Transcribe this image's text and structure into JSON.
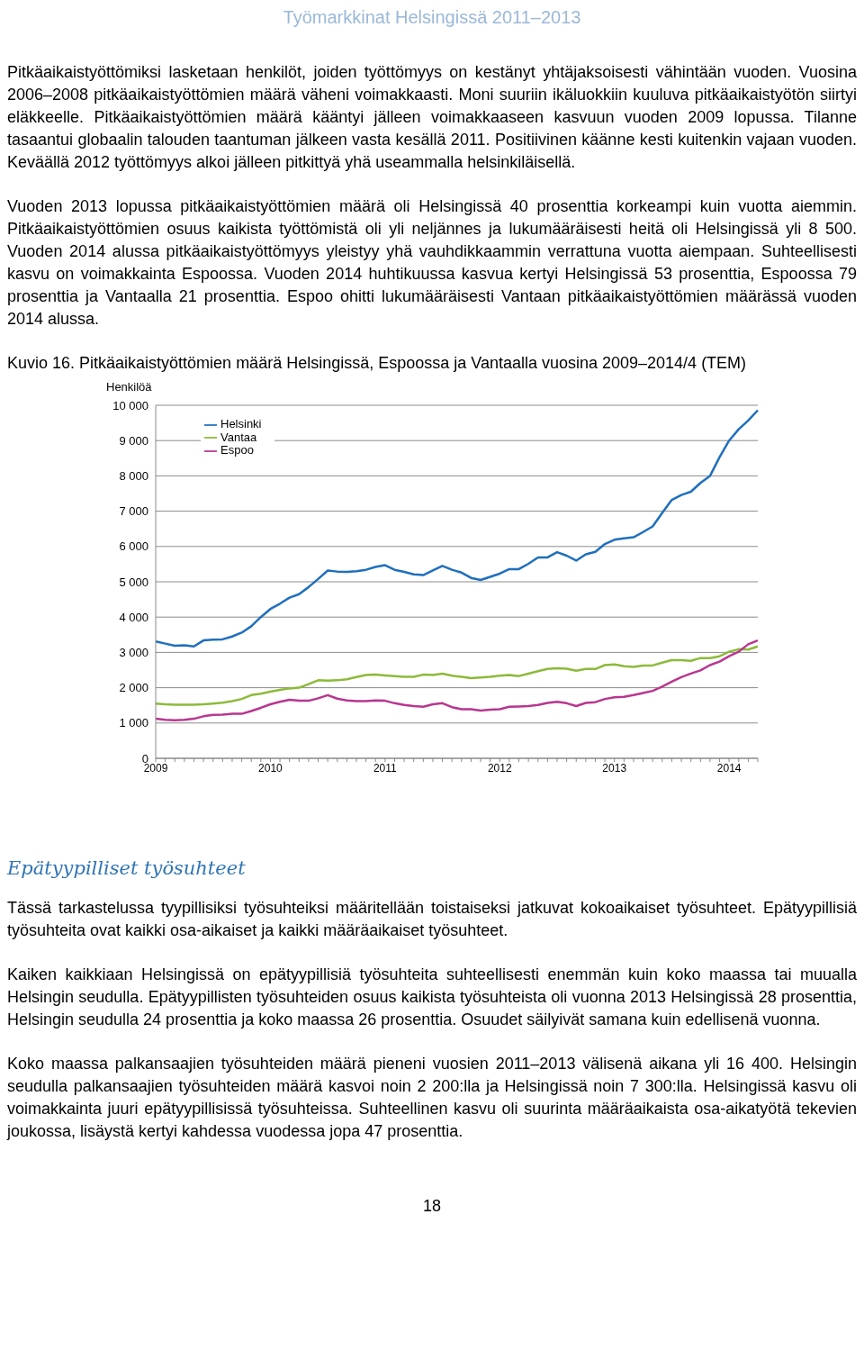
{
  "chart_data": {
    "type": "line",
    "title": "Kuvio 16. Pitkäaikaistyöttömien määrä Helsingissä, Espoossa ja Vantaalla vuosina 2009–2014/4 (TEM)",
    "ylabel": "Henkilöä",
    "annotations": [
      "Työmarkkinat Helsingissä 2011–2013",
      "Pitkäaikaistyöttömiksi lasketaan henkilöt, joiden työttömyys on kestänyt yhtäjaksoisesti vähintään vuoden. Vuosina 2006–2008 pitkäaikaistyöttömien määrä väheni voimakkaasti. Moni suuriin ikäluokkiin kuuluva pitkäaikaistyötön siirtyi eläkkeelle. Pitkäaikaistyöttömien määrä kääntyi jälleen voimakkaaseen kasvuun vuoden 2009 lopussa. Tilanne tasaantui globaalin talouden taantuman jälkeen vasta kesällä 2011. Positiivinen käänne kesti kuitenkin vajaan vuoden. Keväällä 2012 työttömyys alkoi jälleen pitkittyä yhä useammalla helsinkiläisellä.",
      "Vuoden 2013 lopussa pitkäaikaistyöttömien määrä oli Helsingissä 40 prosenttia korkeampi kuin vuotta aiemmin. Pitkäaikaistyöttömien osuus kaikista työttömistä oli yli neljännes ja lukumääräisesti heitä oli Helsingissä yli 8 500. Vuoden 2014 alussa pitkäaikaistyöttömyys yleistyy yhä vauhdikkaammin verrattuna vuotta aiempaan. Suhteellisesti kasvu on voimakkainta Espoossa. Vuoden 2014 huhtikuussa kasvua kertyi Helsingissä 53 prosenttia, Espoossa 79 prosenttia ja Vantaalla 21 prosenttia. Espoo ohitti lukumääräisesti Vantaan pitkäaikaistyöttömien määrässä vuoden 2014 alussa.",
      "Epätyypilliset työsuhteet",
      "Tässä tarkastelussa tyypillisiksi työsuhteiksi määritellään toistaiseksi jatkuvat kokoaikaiset työsuhteet. Epätyypillisiä työsuhteita ovat kaikki osa-aikaiset ja kaikki määräaikaiset työsuhteet.",
      "Kaiken kaikkiaan Helsingissä on epätyypillisiä työsuhteita suhteellisesti enemmän kuin koko maassa tai muualla Helsingin seudulla. Epätyypillisten työsuhteiden osuus kaikista työsuhteista oli vuonna 2013 Helsingissä 28 prosenttia, Helsingin seudulla 24 prosenttia ja koko maassa 26 prosenttia. Osuudet säilyivät samana kuin edellisenä vuonna.",
      "Koko maassa palkansaajien työsuhteiden määrä pieneni vuosien 2011–2013 välisenä aikana yli 16 400. Helsingin seudulla palkansaajien työsuhteiden määrä kasvoi noin 2 200:lla ja Helsingissä noin 7 300:lla. Helsingissä kasvu oli voimakkainta juuri epätyypillisissä työsuhteissa. Suhteellinen kasvu oli suurinta määräaikaista osa-aikatyötä tekevien joukossa, lisäystä kertyi kahdessa vuodessa jopa 47 prosenttia.",
      "18"
    ],
    "categories": [
      "2009",
      null,
      null,
      null,
      null,
      null,
      null,
      null,
      null,
      null,
      null,
      null,
      "2010",
      null,
      null,
      null,
      null,
      null,
      null,
      null,
      null,
      null,
      null,
      null,
      "2011",
      null,
      null,
      null,
      null,
      null,
      null,
      null,
      null,
      null,
      null,
      null,
      "2012",
      null,
      null,
      null,
      null,
      null,
      null,
      null,
      null,
      null,
      null,
      null,
      "2013",
      null,
      null,
      null,
      null,
      null,
      null,
      null,
      null,
      null,
      null,
      null,
      "2014",
      null,
      null,
      null
    ],
    "series": [
      {
        "name": "Helsinki",
        "color": "#1f6fbd",
        "values": [
          3310,
          3250,
          3190,
          3200,
          3170,
          3340,
          3360,
          3370,
          3450,
          3560,
          3740,
          4000,
          4230,
          4380,
          4550,
          4650,
          4850,
          5080,
          5320,
          5290,
          5280,
          5300,
          5340,
          5420,
          5470,
          5340,
          5280,
          5210,
          5190,
          5320,
          5450,
          5340,
          5260,
          5110,
          5050,
          5140,
          5230,
          5360,
          5360,
          5510,
          5690,
          5690,
          5840,
          5740,
          5600,
          5780,
          5850,
          6070,
          6190,
          6230,
          6260,
          6410,
          6570,
          6950,
          7320,
          7460,
          7550,
          7800,
          8000,
          8530,
          9000,
          9320,
          9570,
          9860
        ]
      },
      {
        "name": "Vantaa",
        "color": "#8cba3a",
        "values": [
          1550,
          1530,
          1520,
          1520,
          1520,
          1530,
          1550,
          1575,
          1620,
          1680,
          1790,
          1830,
          1890,
          1940,
          1980,
          2000,
          2100,
          2210,
          2200,
          2210,
          2240,
          2300,
          2360,
          2370,
          2350,
          2330,
          2310,
          2310,
          2370,
          2360,
          2400,
          2340,
          2310,
          2270,
          2290,
          2310,
          2340,
          2360,
          2330,
          2400,
          2470,
          2530,
          2550,
          2540,
          2480,
          2530,
          2530,
          2640,
          2660,
          2610,
          2590,
          2630,
          2630,
          2710,
          2780,
          2780,
          2760,
          2840,
          2840,
          2890,
          3020,
          3090,
          3080,
          3170
        ]
      },
      {
        "name": "Espoo",
        "color": "#b8368f",
        "values": [
          1120,
          1090,
          1080,
          1090,
          1120,
          1190,
          1230,
          1240,
          1260,
          1260,
          1340,
          1430,
          1530,
          1600,
          1660,
          1630,
          1630,
          1700,
          1790,
          1690,
          1640,
          1620,
          1620,
          1640,
          1630,
          1560,
          1510,
          1480,
          1460,
          1530,
          1560,
          1450,
          1390,
          1390,
          1350,
          1380,
          1390,
          1460,
          1470,
          1480,
          1510,
          1570,
          1600,
          1560,
          1480,
          1570,
          1590,
          1680,
          1730,
          1740,
          1790,
          1850,
          1910,
          2030,
          2170,
          2300,
          2400,
          2490,
          2640,
          2740,
          2890,
          3020,
          3230,
          3340
        ]
      }
    ],
    "ylim": [
      0,
      10000
    ],
    "yticks": [
      0,
      {
        "value": 1000,
        "label": "1 000"
      },
      {
        "value": 2000,
        "label": "2 000"
      },
      {
        "value": 3000,
        "label": "3 000"
      },
      {
        "value": 4000,
        "label": "4 000"
      },
      {
        "value": 5000,
        "label": "5 000"
      },
      {
        "value": 6000,
        "label": "6 000"
      },
      {
        "value": 7000,
        "label": "7 000"
      },
      {
        "value": 8000,
        "label": "8 000"
      },
      {
        "value": 9000,
        "label": "9 000"
      },
      {
        "value": 10000,
        "label": "10 000"
      }
    ],
    "grid": "y",
    "legend": "top left"
  }
}
